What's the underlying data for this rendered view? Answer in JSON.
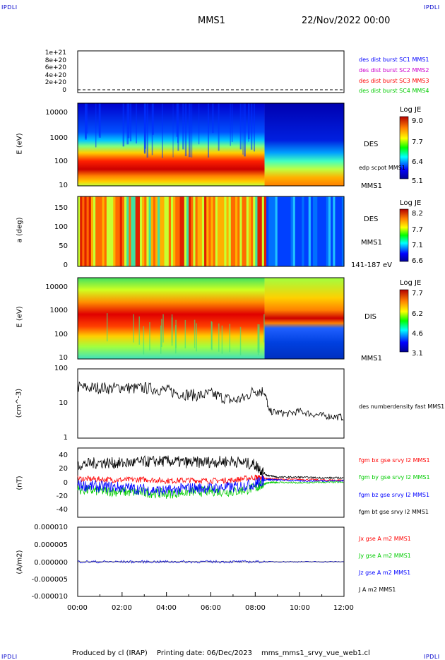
{
  "corners": {
    "tl": "IPDLI",
    "tr": "IPDLI",
    "bl": "IPDLI",
    "br": "IPDLI"
  },
  "header": {
    "mission": "MMS1",
    "date": "22/Nov/2022 00:00"
  },
  "footer": {
    "produced_by": "Produced by cl (IRAP)",
    "printing_date": "Printing date: 06/Dec/2023",
    "script": "mms_mms1_srvy_vue_web1.cl"
  },
  "colors": {
    "spec_blue": "#0000b4",
    "spec_red": "#cc0000",
    "legend_blue": "#0000ff",
    "legend_magenta": "#cc00cc",
    "legend_red": "#ff0000",
    "legend_green": "#00cc00"
  },
  "chart_data": [
    {
      "type": "line",
      "panel": "burst",
      "y_ticks": [
        "1e+21",
        "8e+20",
        "6e+20",
        "4e+20",
        "2e+20",
        "0"
      ],
      "ylim": [
        0,
        1e+21
      ],
      "legend": [
        {
          "label": "des dist burst SC1 MMS1",
          "color": "#0000ff"
        },
        {
          "label": "des dist burst SC2 MMS2",
          "color": "#cc00cc"
        },
        {
          "label": "des dist burst SC3 MMS3",
          "color": "#ff0000"
        },
        {
          "label": "des dist burst SC4 MMS4",
          "color": "#00cc00"
        }
      ]
    },
    {
      "type": "heatmap",
      "panel": "des_energy",
      "ylabel": "E (eV)",
      "y_scale": "log",
      "y_ticks": [
        "10000",
        "1000",
        "100",
        "10"
      ],
      "side_labels": {
        "instrument": "DES",
        "spacecraft": "MMS1",
        "overlay": "edp scpot MMS1"
      },
      "colorbar": {
        "title": "Log JE",
        "ticks": [
          "9.0",
          "7.7",
          "6.4",
          "5.1"
        ],
        "range": [
          5.1,
          9.0
        ]
      },
      "peak_band_eV_before": [
        40,
        110
      ],
      "peak_band_eV_after": [
        20,
        60
      ]
    },
    {
      "type": "heatmap",
      "panel": "des_pitch",
      "ylabel": "a (deg)",
      "y_ticks": [
        "150",
        "100",
        "50",
        "0"
      ],
      "ylim": [
        0,
        180
      ],
      "side_labels": {
        "instrument": "DES",
        "spacecraft": "MMS1",
        "energy_range": "141-187 eV"
      },
      "colorbar": {
        "title": "Log JE",
        "ticks": [
          "8.2",
          "7.7",
          "7.1",
          "6.6"
        ],
        "range": [
          6.6,
          8.2
        ]
      }
    },
    {
      "type": "heatmap",
      "panel": "dis_energy",
      "ylabel": "E (eV)",
      "y_scale": "log",
      "y_ticks": [
        "10000",
        "1000",
        "100",
        "10"
      ],
      "side_labels": {
        "instrument": "DIS",
        "spacecraft": "MMS1"
      },
      "colorbar": {
        "title": "Log JE",
        "ticks": [
          "7.7",
          "6.2",
          "4.6",
          "3.1"
        ],
        "range": [
          3.1,
          7.7
        ]
      },
      "peak_band_eV_before": [
        300,
        3000
      ],
      "peak_band_eV_after": [
        600,
        900
      ]
    },
    {
      "type": "line",
      "panel": "density",
      "ylabel": "(cm^-3)",
      "y_scale": "log",
      "y_ticks": [
        "100",
        "10",
        "1"
      ],
      "ylim": [
        1,
        100
      ],
      "legend": [
        {
          "label": "des numberdensity fast MMS1",
          "color": "#000000"
        }
      ],
      "x_hours": [
        0,
        0.5,
        1,
        1.5,
        2,
        2.5,
        3,
        3.5,
        4,
        4.5,
        5,
        5.5,
        6,
        6.5,
        7,
        7.5,
        8,
        8.4,
        8.6,
        9,
        9.5,
        10,
        10.5,
        11,
        11.5,
        12
      ],
      "values": [
        30,
        28,
        29,
        27,
        30,
        27,
        28,
        26,
        24,
        20,
        18,
        17,
        19,
        15,
        12,
        14,
        24,
        22,
        6,
        5.5,
        5,
        6,
        5,
        4.5,
        4.2,
        4
      ]
    },
    {
      "type": "line",
      "panel": "magnetic_field",
      "ylabel": "(nT)",
      "y_ticks": [
        "40",
        "20",
        "0",
        "-20",
        "-40"
      ],
      "ylim": [
        -50,
        45
      ],
      "legend": [
        {
          "label": "fgm bx gse srvy l2 MMS1",
          "color": "#ff0000"
        },
        {
          "label": "fgm by gse srvy l2 MMS1",
          "color": "#00cc00"
        },
        {
          "label": "fgm bz gse srvy l2 MMS1",
          "color": "#0000ff"
        },
        {
          "label": "fgm bt gse srvy l2 MMS1",
          "color": "#000000"
        }
      ],
      "x_hours": [
        0,
        1,
        2,
        3,
        4,
        5,
        6,
        7,
        8,
        8.5,
        9,
        10,
        11,
        12
      ],
      "series": [
        {
          "name": "fgm bt gse srvy l2 MMS1",
          "values": [
            22,
            25,
            24,
            26,
            27,
            25,
            26,
            27,
            22,
            8,
            5,
            5,
            4,
            4
          ]
        },
        {
          "name": "fgm bx gse srvy l2 MMS1",
          "values": [
            3,
            2,
            1,
            2,
            0,
            1,
            0,
            1,
            5,
            3,
            2,
            2,
            1,
            1
          ]
        },
        {
          "name": "fgm by gse srvy l2 MMS1",
          "values": [
            -12,
            -14,
            -15,
            -16,
            -18,
            -15,
            -14,
            -15,
            -10,
            -3,
            -2,
            -3,
            -2,
            -2
          ]
        },
        {
          "name": "fgm bz gse srvy l2 MMS1",
          "values": [
            -6,
            -8,
            -9,
            -12,
            -14,
            -10,
            -10,
            -9,
            -4,
            2,
            1,
            0,
            0,
            0
          ]
        }
      ]
    },
    {
      "type": "line",
      "panel": "current_density",
      "ylabel": "(A/m2)",
      "y_ticks": [
        "0.000010",
        "0.000005",
        "0.000000",
        "-0.000005",
        "-0.000010"
      ],
      "ylim": [
        -1e-05,
        1e-05
      ],
      "legend": [
        {
          "label": "Jx gse A m2 MMS1",
          "color": "#ff0000"
        },
        {
          "label": "Jy gse A m2 MMS1",
          "color": "#00cc00"
        },
        {
          "label": "Jz gse A m2 MMS1",
          "color": "#0000ff"
        },
        {
          "label": "J A m2 MMS1",
          "color": "#000000"
        }
      ],
      "x_hours": [
        0,
        2,
        4,
        6,
        8,
        8.5,
        10,
        12
      ],
      "values": [
        0,
        0,
        0,
        0,
        0,
        0,
        0,
        0
      ]
    }
  ],
  "x_axis": {
    "ticks": [
      "00:00",
      "02:00",
      "04:00",
      "06:00",
      "08:00",
      "10:00",
      "12:00"
    ],
    "range_hours": [
      0,
      12
    ]
  }
}
